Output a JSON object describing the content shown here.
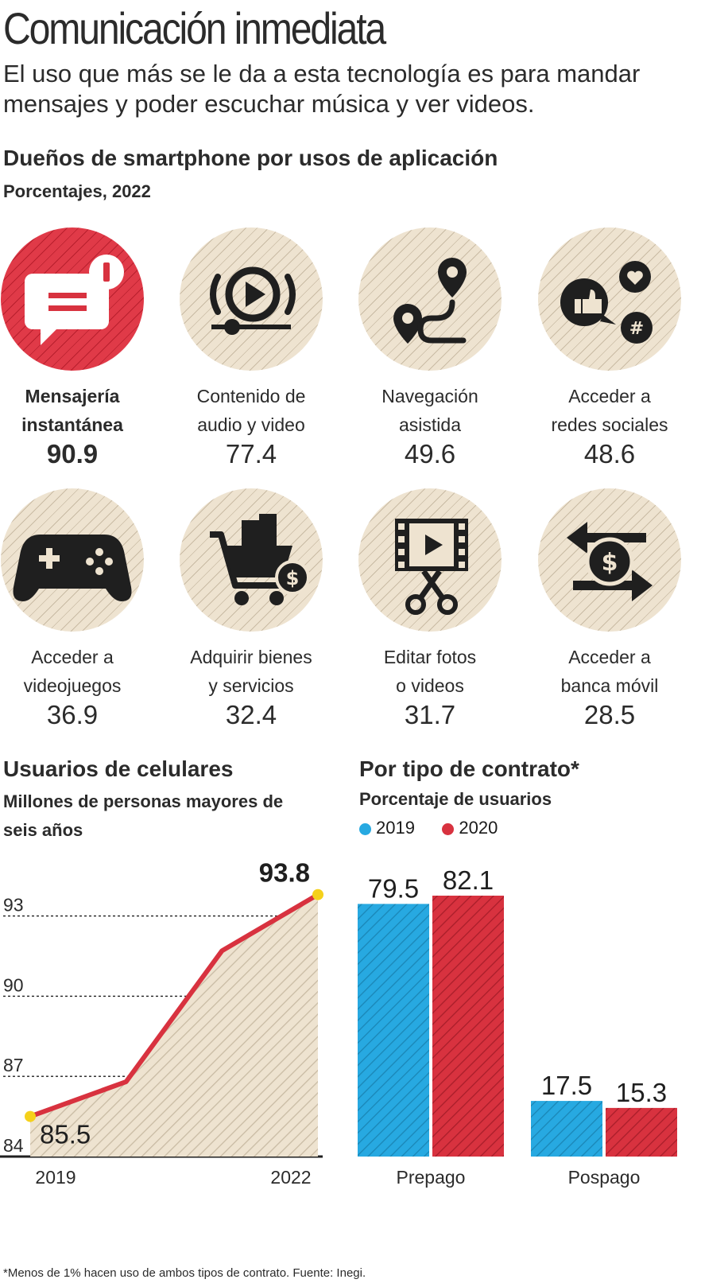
{
  "title": "Comunicación inmediata",
  "subtitle": "El uso que más se le da a esta tecnología es para mandar mensajes y poder escuchar música y ver videos.",
  "apps_section": {
    "title": "Dueños de smartphone por usos de aplicación",
    "subtitle": "Porcentajes, 2022"
  },
  "colors": {
    "red": "#d8323f",
    "blue": "#27a9e1",
    "beige": "#eee3d0",
    "dark": "#1f1f1f",
    "highlight": "#f5d11b"
  },
  "chart_data": [
    {
      "type": "table",
      "title": "Dueños de smartphone por usos de aplicación",
      "subtitle": "Porcentajes, 2022",
      "rows": [
        {
          "label_line1": "Mensajería",
          "label_line2": "instantánea",
          "value": "90.9",
          "icon": "chat-bubble-icon",
          "highlight": true
        },
        {
          "label_line1": "Contenido de",
          "label_line2": "audio y video",
          "value": "77.4",
          "icon": "play-media-icon",
          "highlight": false
        },
        {
          "label_line1": "Navegación",
          "label_line2": "asistida",
          "value": "49.6",
          "icon": "map-route-icon",
          "highlight": false
        },
        {
          "label_line1": "Acceder a",
          "label_line2": "redes sociales",
          "value": "48.6",
          "icon": "social-network-icon",
          "highlight": false
        },
        {
          "label_line1": "Acceder a",
          "label_line2": "videojuegos",
          "value": "36.9",
          "icon": "gamepad-icon",
          "highlight": false
        },
        {
          "label_line1": "Adquirir bienes",
          "label_line2": "y servicios",
          "value": "32.4",
          "icon": "shopping-cart-icon",
          "highlight": false
        },
        {
          "label_line1": "Editar fotos",
          "label_line2": "o videos",
          "value": "31.7",
          "icon": "film-scissors-icon",
          "highlight": false
        },
        {
          "label_line1": "Acceder a",
          "label_line2": "banca móvil",
          "value": "28.5",
          "icon": "money-exchange-icon",
          "highlight": false
        }
      ]
    },
    {
      "type": "area",
      "title": "Usuarios de celulares",
      "subtitle": "Millones de personas mayores de seis años",
      "x": [
        2019,
        2020,
        2021,
        2022
      ],
      "y": [
        85.5,
        86.8,
        91.7,
        93.8
      ],
      "x_tick_labels": [
        "2019",
        "2022"
      ],
      "y_ticks": [
        "84",
        "87",
        "90",
        "93"
      ],
      "ylim": [
        84,
        94
      ],
      "labeled_points": [
        "85.5",
        "93.8"
      ],
      "grid": true
    },
    {
      "type": "bar",
      "title": "Por tipo de contrato*",
      "subtitle": "Porcentaje de usuarios",
      "categories": [
        "Prepago",
        "Pospago"
      ],
      "series": [
        {
          "name": "2019",
          "values": [
            79.5,
            17.5
          ],
          "labels": [
            "79.5",
            "17.5"
          ],
          "color": "#27a9e1"
        },
        {
          "name": "2020",
          "values": [
            82.1,
            15.3
          ],
          "labels": [
            "82.1",
            "15.3"
          ],
          "color": "#d8323f"
        }
      ],
      "ylim": [
        0,
        82.1
      ],
      "legend": "top-left"
    }
  ],
  "footnote": "*Menos de 1% hacen uso de ambos tipos de contrato. Fuente: Inegi."
}
